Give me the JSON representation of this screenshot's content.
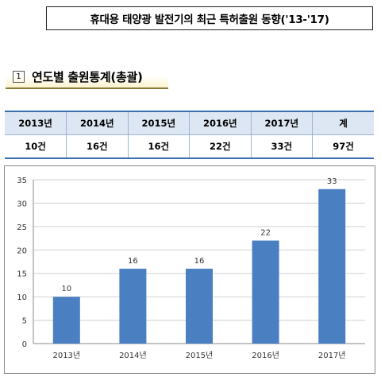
{
  "header": {
    "title": "휴대용 태양광 발전기의 최근 특허출원 동향('13-'17)"
  },
  "section": {
    "number": "1",
    "label": "연도별 출원통계(총괄)"
  },
  "table": {
    "headers": [
      "2013년",
      "2014년",
      "2015년",
      "2016년",
      "2017년",
      "계"
    ],
    "values": [
      "10건",
      "16건",
      "16건",
      "22건",
      "33건",
      "97건"
    ]
  },
  "chart_data": {
    "type": "bar",
    "categories": [
      "2013년",
      "2014년",
      "2015년",
      "2016년",
      "2017년"
    ],
    "values": [
      10,
      16,
      16,
      22,
      33
    ],
    "data_labels": [
      "10",
      "16",
      "16",
      "22",
      "33"
    ],
    "ylim": [
      0,
      35
    ],
    "yticks": [
      0,
      5,
      10,
      15,
      20,
      25,
      30,
      35
    ],
    "grid": true,
    "bar_color": "#4a7fc1",
    "title": "",
    "xlabel": "",
    "ylabel": ""
  }
}
